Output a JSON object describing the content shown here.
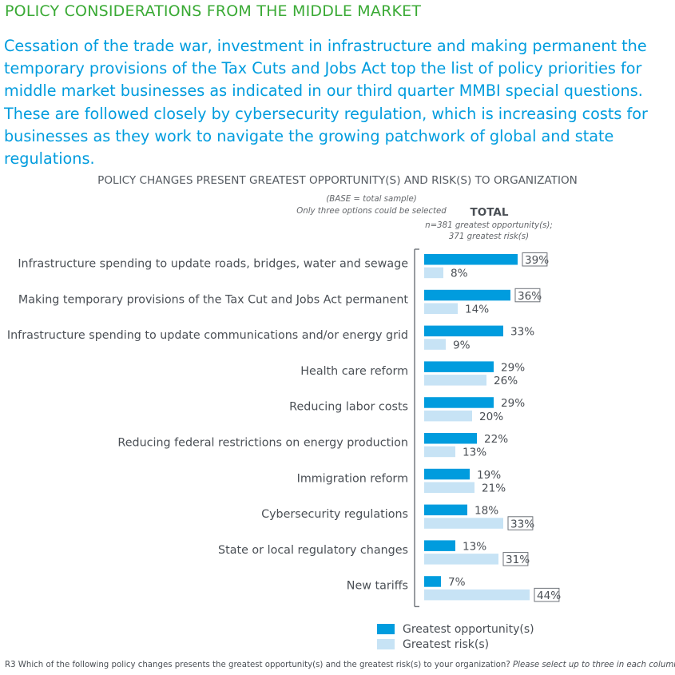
{
  "header": {
    "headline": "POLICY CONSIDERATIONS FROM THE MIDDLE MARKET",
    "intro": "Cessation of the trade war, investment in infrastructure and making permanent the temporary provisions of the Tax Cuts and Jobs Act top the list of policy priorities for middle market businesses as indicated in our third quarter MMBI special questions. These are followed closely by cybersecurity regulation, which is increasing costs for businesses as they work to navigate the growing patchwork of global and state regulations."
  },
  "chart_data": {
    "type": "bar",
    "orientation": "horizontal",
    "title": "POLICY CHANGES PRESENT GREATEST OPPORTUNITY(S) AND RISK(S) TO ORGANIZATION",
    "base_note": "(BASE = total sample)",
    "selection_note": "Only three options could be selected",
    "column_header": "TOTAL",
    "sample_note_1": "n=381 greatest opportunity(s);",
    "sample_note_2": "371 greatest risk(s)",
    "categories": [
      "Infrastructure spending to update roads, bridges, water and sewage",
      "Making temporary provisions of the Tax Cut and Jobs Act permanent",
      "Infrastructure spending to update communications and/or energy grid",
      "Health care reform",
      "Reducing labor costs",
      "Reducing federal restrictions on energy production",
      "Immigration reform",
      "Cybersecurity regulations",
      "State or local regulatory changes",
      "New tariffs"
    ],
    "series": [
      {
        "name": "Greatest opportunity(s)",
        "color": "#009cde",
        "values": [
          39,
          36,
          33,
          29,
          29,
          22,
          19,
          18,
          13,
          7
        ],
        "labels": [
          "39%",
          "36%",
          "33%",
          "29%",
          "29%",
          "22%",
          "19%",
          "18%",
          "13%",
          "7%"
        ],
        "boxed": [
          true,
          true,
          false,
          false,
          false,
          false,
          false,
          false,
          false,
          false
        ]
      },
      {
        "name": "Greatest risk(s)",
        "color": "#c7e3f5",
        "values": [
          8,
          14,
          9,
          26,
          20,
          13,
          21,
          33,
          31,
          44
        ],
        "labels": [
          "8%",
          "14%",
          "9%",
          "26%",
          "20%",
          "13%",
          "21%",
          "33%",
          "31%",
          "44%"
        ],
        "boxed": [
          false,
          false,
          false,
          false,
          false,
          false,
          false,
          true,
          true,
          true
        ]
      }
    ],
    "legend_position": "bottom-right",
    "grid": false
  },
  "footnote": {
    "question": "R3 Which of the following  policy changes presents the greatest opportunity(s) and the greatest risk(s) to your organization?",
    "instruction": "Please select up to three in each column."
  }
}
